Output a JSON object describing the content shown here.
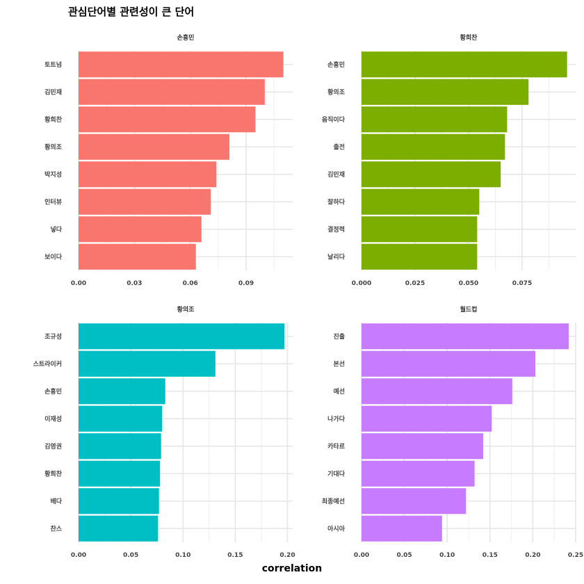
{
  "title": "관심단어별 관련성이 큰 단어",
  "xlabel": "correlation",
  "chart_data": [
    {
      "type": "bar",
      "orientation": "horizontal",
      "facet": "손흥민",
      "color": "#F8766D",
      "categories": [
        "토트넘",
        "김민재",
        "황희찬",
        "황의조",
        "박지성",
        "인터뷰",
        "넣다",
        "보이다"
      ],
      "values": [
        0.11,
        0.1,
        0.095,
        0.081,
        0.074,
        0.071,
        0.066,
        0.063
      ],
      "xlim": [
        0,
        0.115
      ],
      "xticks": [
        0.0,
        0.03,
        0.06,
        0.09
      ],
      "xtick_labels": [
        "0.00",
        "0.03",
        "0.06",
        "0.09"
      ]
    },
    {
      "type": "bar",
      "orientation": "horizontal",
      "facet": "황희찬",
      "color": "#7CAE00",
      "categories": [
        "손흥민",
        "황의조",
        "움직이다",
        "출전",
        "김민재",
        "잘하다",
        "결정력",
        "날리다"
      ],
      "values": [
        0.096,
        0.078,
        0.068,
        0.067,
        0.065,
        0.055,
        0.054,
        0.054
      ],
      "xlim": [
        0,
        0.1
      ],
      "xticks": [
        0.0,
        0.025,
        0.05,
        0.075
      ],
      "xtick_labels": [
        "0.000",
        "0.025",
        "0.050",
        "0.075"
      ]
    },
    {
      "type": "bar",
      "orientation": "horizontal",
      "facet": "황의조",
      "color": "#00BFC4",
      "categories": [
        "조규성",
        "스트라이커",
        "손흥민",
        "이재성",
        "김영권",
        "황희찬",
        "배다",
        "찬스"
      ],
      "values": [
        0.197,
        0.131,
        0.083,
        0.08,
        0.079,
        0.078,
        0.077,
        0.076
      ],
      "xlim": [
        0,
        0.205
      ],
      "xticks": [
        0.0,
        0.05,
        0.1,
        0.15,
        0.2
      ],
      "xtick_labels": [
        "0.00",
        "0.05",
        "0.10",
        "0.15",
        "0.20"
      ]
    },
    {
      "type": "bar",
      "orientation": "horizontal",
      "facet": "월드컵",
      "color": "#C77CFF",
      "categories": [
        "진출",
        "본선",
        "예선",
        "나가다",
        "카타르",
        "기대다",
        "최종예선",
        "아시아"
      ],
      "values": [
        0.242,
        0.203,
        0.176,
        0.152,
        0.142,
        0.132,
        0.122,
        0.094
      ],
      "xlim": [
        0,
        0.25
      ],
      "xticks": [
        0.0,
        0.05,
        0.1,
        0.15,
        0.2,
        0.25
      ],
      "xtick_labels": [
        "0.00",
        "0.05",
        "0.10",
        "0.15",
        "0.20",
        "0.25"
      ]
    }
  ]
}
